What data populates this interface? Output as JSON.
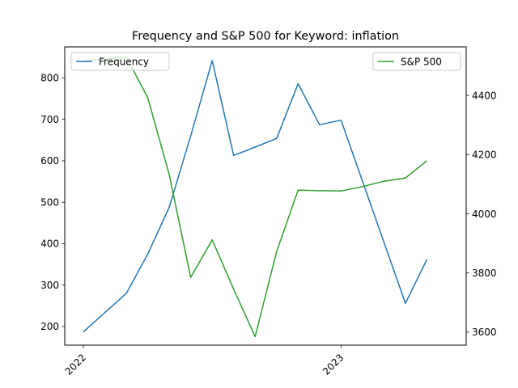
{
  "chart_data": {
    "type": "line",
    "title": "Frequency and S&P 500 for Keyword: inflation",
    "x": [
      "2022-01",
      "2022-02",
      "2022-03",
      "2022-04",
      "2022-05",
      "2022-06",
      "2022-07",
      "2022-08",
      "2022-09",
      "2022-10",
      "2022-11",
      "2022-12",
      "2023-01",
      "2023-02",
      "2023-03",
      "2023-04",
      "2023-05",
      "2023-06"
    ],
    "x_tick_labels": [
      "2022",
      "2023"
    ],
    "series": [
      {
        "name": "Frequency",
        "axis": "left",
        "color": "#1f77b4",
        "x": [
          "2022-01",
          "2022-03",
          "2022-04",
          "2022-05",
          "2022-06",
          "2022-07",
          "2022-08",
          "2022-09",
          "2022-10",
          "2022-11",
          "2022-12",
          "2023-01",
          "2023-04",
          "2023-05"
        ],
        "values": [
          187,
          280,
          375,
          488,
          660,
          842,
          613,
          633,
          654,
          786,
          687,
          698,
          256,
          362
        ]
      },
      {
        "name": "S&P 500",
        "axis": "right",
        "color": "#2ca02c",
        "x": [
          "2022-01",
          "2022-02",
          "2022-03",
          "2022-04",
          "2022-05",
          "2022-06",
          "2022-07",
          "2022-08",
          "2022-09",
          "2022-10",
          "2022-11",
          "2022-12",
          "2023-01",
          "2023-02",
          "2023-03",
          "2023-04",
          "2023-05"
        ],
        "values": [
          4516,
          4523,
          4530,
          4392,
          4132,
          3785,
          3912,
          3745,
          3585,
          3872,
          4080,
          4078,
          4077,
          4092,
          4110,
          4121,
          4179
        ]
      }
    ],
    "ylim_left": [
      155,
      875
    ],
    "ylim_right": [
      3556,
      4564
    ],
    "y_ticks_left": [
      200,
      300,
      400,
      500,
      600,
      700,
      800
    ],
    "y_ticks_right": [
      3600,
      3800,
      4000,
      4200,
      4400
    ],
    "legends": [
      {
        "placement": "top-left",
        "series": "Frequency"
      },
      {
        "placement": "top-right",
        "series": "S&P 500"
      }
    ],
    "grid": false
  }
}
